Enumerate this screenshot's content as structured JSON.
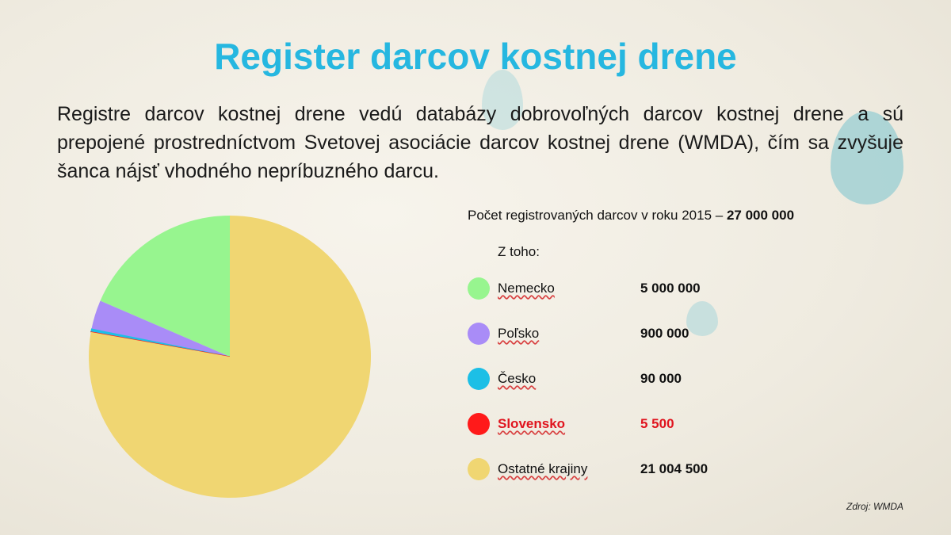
{
  "slide": {
    "title": "Register darcov kostnej drene",
    "intro": "Registre darcov kostnej drene vedú databázy dobrovoľných darcov kostnej drene a sú prepojené prostredníctvom Svetovej asociácie darcov kostnej drene (WMDA), čím sa zvyšuje šanca nájsť vhodného nepríbuzného darcu.",
    "total_label": "Počet registrovaných darcov v roku 2015 – ",
    "total_value": "27 000 000",
    "subheading": "Z toho:",
    "source": "Zdroj: WMDA"
  },
  "chart_data": {
    "type": "pie",
    "title": "",
    "total": 27000000,
    "slices": [
      {
        "label": "Nemecko",
        "value": 5000000,
        "display": "5 000 000",
        "color": "#97f58f"
      },
      {
        "label": "Poľsko",
        "value": 900000,
        "display": "900 000",
        "color": "#a98cf7"
      },
      {
        "label": "Česko",
        "value": 90000,
        "display": "90 000",
        "color": "#1cbfe6"
      },
      {
        "label": "Slovensko",
        "value": 5500,
        "display": "5 500",
        "color": "#ff1a1a",
        "highlight": true
      },
      {
        "label": "Ostatné krajiny",
        "value": 21004500,
        "display": "21 004 500",
        "color": "#f0d672"
      }
    ]
  }
}
